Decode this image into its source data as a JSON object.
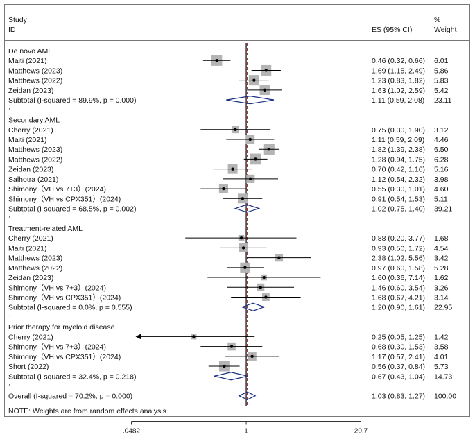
{
  "chart_data": {
    "type": "forest",
    "header": {
      "study_label": "Study",
      "id_label": "ID",
      "es_label": "ES (95% CI)",
      "weight_label_1": "%",
      "weight_label_2": "Weight"
    },
    "x_scale": "log",
    "xlim": [
      0.0482,
      20.7
    ],
    "x_ticks": [
      {
        "value": 0.0482,
        "label": ".0482"
      },
      {
        "value": 1,
        "label": "1"
      },
      {
        "value": 20.7,
        "label": "20.7"
      }
    ],
    "null_line": 1,
    "overall_line": 1.03,
    "note": "NOTE: Weights are from random effects analysis",
    "rows": [
      {
        "kind": "group",
        "label": "De novo AML"
      },
      {
        "kind": "study",
        "label": "Maiti (2021)",
        "es": 0.46,
        "lo": 0.32,
        "hi": 0.66,
        "ci_text": "0.46 (0.32, 0.66)",
        "weight": "6.01"
      },
      {
        "kind": "study",
        "label": "Matthews (2023)",
        "es": 1.69,
        "lo": 1.15,
        "hi": 2.49,
        "ci_text": "1.69 (1.15, 2.49)",
        "weight": "5.86"
      },
      {
        "kind": "study",
        "label": "Matthews (2022)",
        "es": 1.23,
        "lo": 0.83,
        "hi": 1.82,
        "ci_text": "1.23 (0.83, 1.82)",
        "weight": "5.83"
      },
      {
        "kind": "study",
        "label": "Zeidan (2023)",
        "es": 1.63,
        "lo": 1.02,
        "hi": 2.59,
        "ci_text": "1.63 (1.02, 2.59)",
        "weight": "5.42"
      },
      {
        "kind": "subtotal",
        "label": "Subtotal  (I-squared = 89.9%, p = 0.000)",
        "es": 1.11,
        "lo": 0.59,
        "hi": 2.08,
        "ci_text": "1.11 (0.59, 2.08)",
        "weight": "23.11"
      },
      {
        "kind": "dot",
        "label": "."
      },
      {
        "kind": "group",
        "label": "Secondary AML"
      },
      {
        "kind": "study",
        "label": "Cherry (2021)",
        "es": 0.75,
        "lo": 0.3,
        "hi": 1.9,
        "ci_text": "0.75 (0.30, 1.90)",
        "weight": "3.12"
      },
      {
        "kind": "study",
        "label": "Maiti (2021)",
        "es": 1.11,
        "lo": 0.59,
        "hi": 2.09,
        "ci_text": "1.11 (0.59, 2.09)",
        "weight": "4.46"
      },
      {
        "kind": "study",
        "label": "Matthews (2023)",
        "es": 1.82,
        "lo": 1.39,
        "hi": 2.38,
        "ci_text": "1.82 (1.39, 2.38)",
        "weight": "6.50"
      },
      {
        "kind": "study",
        "label": "Matthews (2022)",
        "es": 1.28,
        "lo": 0.94,
        "hi": 1.75,
        "ci_text": "1.28 (0.94, 1.75)",
        "weight": "6.28"
      },
      {
        "kind": "study",
        "label": "Zeidan (2023)",
        "es": 0.7,
        "lo": 0.42,
        "hi": 1.16,
        "ci_text": "0.70 (0.42, 1.16)",
        "weight": "5.16"
      },
      {
        "kind": "study",
        "label": "Salhotra (2021)",
        "es": 1.12,
        "lo": 0.54,
        "hi": 2.32,
        "ci_text": "1.12 (0.54, 2.32)",
        "weight": "3.98"
      },
      {
        "kind": "study",
        "label": "Shimony（VH vs 7+3）(2024)",
        "es": 0.55,
        "lo": 0.3,
        "hi": 1.01,
        "ci_text": "0.55 (0.30, 1.01)",
        "weight": "4.60"
      },
      {
        "kind": "study",
        "label": "Shimony（VH vs CPX351）(2024)",
        "es": 0.91,
        "lo": 0.54,
        "hi": 1.53,
        "ci_text": "0.91 (0.54, 1.53)",
        "weight": "5.11"
      },
      {
        "kind": "subtotal",
        "label": "Subtotal  (I-squared = 68.5%, p = 0.002)",
        "es": 1.02,
        "lo": 0.75,
        "hi": 1.4,
        "ci_text": "1.02 (0.75, 1.40)",
        "weight": "39.21"
      },
      {
        "kind": "dot",
        "label": "."
      },
      {
        "kind": "group",
        "label": "Treatment-related AML"
      },
      {
        "kind": "study",
        "label": "Cherry (2021)",
        "es": 0.88,
        "lo": 0.2,
        "hi": 3.77,
        "ci_text": "0.88 (0.20, 3.77)",
        "weight": "1.68"
      },
      {
        "kind": "study",
        "label": "Maiti (2021)",
        "es": 0.93,
        "lo": 0.5,
        "hi": 1.72,
        "ci_text": "0.93 (0.50, 1.72)",
        "weight": "4.54"
      },
      {
        "kind": "study",
        "label": "Matthews (2023)",
        "es": 2.38,
        "lo": 1.02,
        "hi": 5.56,
        "ci_text": "2.38 (1.02, 5.56)",
        "weight": "3.42"
      },
      {
        "kind": "study",
        "label": "Matthews (2022)",
        "es": 0.97,
        "lo": 0.6,
        "hi": 1.58,
        "ci_text": "0.97 (0.60, 1.58)",
        "weight": "5.28"
      },
      {
        "kind": "study",
        "label": "Zeidan (2023)",
        "es": 1.6,
        "lo": 0.36,
        "hi": 7.14,
        "ci_text": "1.60 (0.36, 7.14)",
        "weight": "1.62"
      },
      {
        "kind": "study",
        "label": "Shimony（VH vs 7+3）(2024)",
        "es": 1.46,
        "lo": 0.6,
        "hi": 3.54,
        "ci_text": "1.46 (0.60, 3.54)",
        "weight": "3.26"
      },
      {
        "kind": "study",
        "label": "Shimony（VH vs CPX351）(2024)",
        "es": 1.68,
        "lo": 0.67,
        "hi": 4.21,
        "ci_text": "1.68 (0.67, 4.21)",
        "weight": "3.14"
      },
      {
        "kind": "subtotal",
        "label": "Subtotal  (I-squared = 0.0%, p = 0.555)",
        "es": 1.2,
        "lo": 0.9,
        "hi": 1.61,
        "ci_text": "1.20 (0.90, 1.61)",
        "weight": "22.95"
      },
      {
        "kind": "dot",
        "label": "."
      },
      {
        "kind": "group",
        "label": "Prior therapy for myeloid disease"
      },
      {
        "kind": "study",
        "label": "Cherry (2021)",
        "es": 0.25,
        "lo": 0.05,
        "hi": 1.25,
        "ci_text": "0.25 (0.05, 1.25)",
        "weight": "1.42",
        "arrow_left": true
      },
      {
        "kind": "study",
        "label": "Shimony（VH vs 7+3）(2024)",
        "es": 0.68,
        "lo": 0.3,
        "hi": 1.53,
        "ci_text": "0.68 (0.30, 1.53)",
        "weight": "3.58"
      },
      {
        "kind": "study",
        "label": "Shimony（VH vs CPX351）(2024)",
        "es": 1.17,
        "lo": 0.57,
        "hi": 2.41,
        "ci_text": "1.17 (0.57, 2.41)",
        "weight": "4.01"
      },
      {
        "kind": "study",
        "label": "Short (2022)",
        "es": 0.56,
        "lo": 0.37,
        "hi": 0.84,
        "ci_text": "0.56 (0.37, 0.84)",
        "weight": "5.73"
      },
      {
        "kind": "subtotal",
        "label": "Subtotal  (I-squared = 32.4%, p = 0.218)",
        "es": 0.67,
        "lo": 0.43,
        "hi": 1.04,
        "ci_text": "0.67 (0.43, 1.04)",
        "weight": "14.73"
      },
      {
        "kind": "dot",
        "label": "."
      },
      {
        "kind": "overall",
        "label": "Overall  (I-squared = 70.2%, p = 0.000)",
        "es": 1.03,
        "lo": 0.83,
        "hi": 1.27,
        "ci_text": "1.03 (0.83, 1.27)",
        "weight": "100.00"
      }
    ],
    "colors": {
      "square": "#b4b4b4",
      "diamond": "#1a2f80",
      "line": "#000000",
      "dash": "#9b1c1c"
    }
  }
}
